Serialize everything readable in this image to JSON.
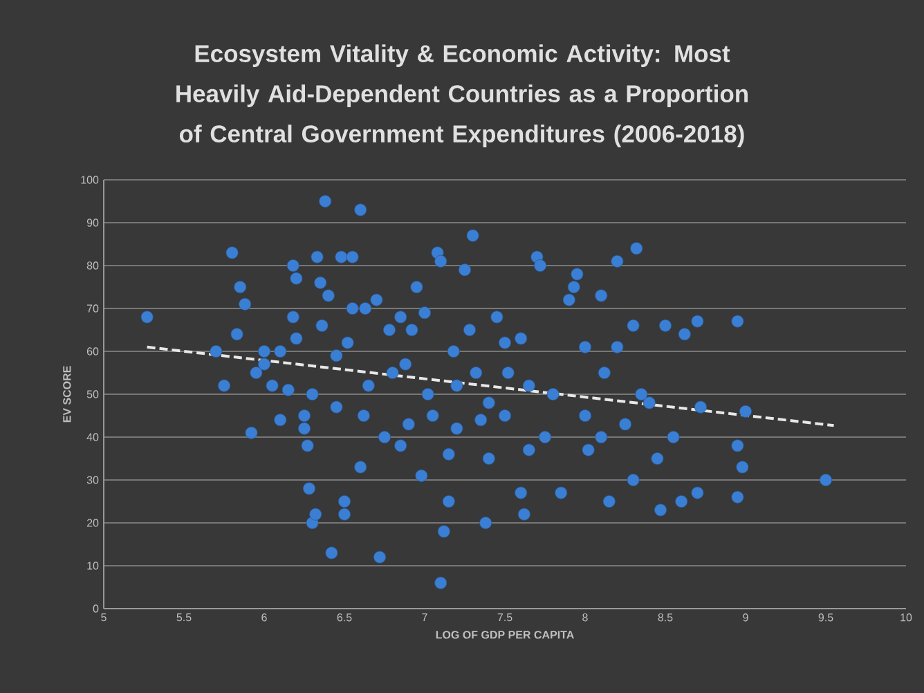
{
  "chart_data": {
    "type": "scatter",
    "title": "Ecosystem Vitality & Economic Activity: Most Heavily Aid-Dependent Countries as a Proportion of Central Government Expenditures (2006-2018)",
    "xlabel": "LOG OF GDP PER CAPITA",
    "ylabel": "EV SCORE",
    "xlim": [
      5,
      10
    ],
    "xticks": [
      5,
      5.5,
      6,
      6.5,
      7,
      7.5,
      8,
      8.5,
      9,
      9.5,
      10
    ],
    "ylim": [
      0,
      100
    ],
    "yticks": [
      0,
      10,
      20,
      30,
      40,
      50,
      60,
      70,
      80,
      90,
      100
    ],
    "grid": "y",
    "series": [
      {
        "color": "#3b7fd4",
        "marker": "circle",
        "x": [
          5.27,
          5.7,
          5.75,
          5.8,
          5.85,
          5.88,
          5.83,
          5.92,
          5.95,
          6.0,
          6.0,
          6.05,
          6.1,
          6.15,
          6.18,
          6.2,
          6.18,
          6.2,
          6.25,
          6.25,
          6.27,
          6.28,
          6.3,
          6.32,
          6.3,
          6.33,
          6.35,
          6.36,
          6.38,
          6.4,
          6.42,
          6.45,
          6.48,
          6.5,
          6.5,
          6.52,
          6.55,
          6.55,
          6.6,
          6.62,
          6.63,
          6.6,
          6.65,
          6.7,
          6.72,
          6.75,
          6.78,
          6.8,
          6.85,
          6.88,
          6.9,
          6.92,
          6.95,
          6.98,
          7.0,
          7.02,
          7.05,
          7.08,
          7.1,
          7.1,
          7.12,
          7.15,
          7.15,
          7.18,
          7.2,
          7.2,
          7.25,
          7.28,
          7.3,
          7.32,
          7.35,
          7.38,
          7.4,
          7.45,
          7.5,
          7.5,
          7.52,
          7.6,
          7.6,
          7.62,
          7.65,
          7.7,
          7.72,
          7.75,
          7.8,
          7.85,
          7.9,
          7.93,
          7.95,
          8.0,
          8.0,
          8.02,
          8.1,
          8.12,
          8.15,
          8.2,
          8.2,
          8.25,
          8.3,
          8.32,
          8.35,
          8.4,
          8.45,
          8.47,
          8.5,
          8.55,
          8.6,
          8.62,
          8.7,
          8.72,
          8.7,
          8.95,
          8.95,
          8.98,
          8.95,
          9.0,
          9.5,
          6.85,
          7.4,
          8.3,
          6.1,
          6.45,
          7.65,
          8.1
        ],
        "values": [
          68,
          60,
          52,
          83,
          75,
          71,
          64,
          41,
          55,
          57,
          60,
          52,
          60,
          51,
          80,
          77,
          68,
          63,
          45,
          42,
          38,
          28,
          20,
          22,
          50,
          82,
          76,
          66,
          95,
          73,
          13,
          59,
          82,
          25,
          22,
          62,
          82,
          70,
          93,
          45,
          70,
          33,
          52,
          72,
          12,
          40,
          65,
          55,
          68,
          57,
          43,
          65,
          75,
          31,
          69,
          50,
          45,
          83,
          81,
          6,
          18,
          25,
          36,
          60,
          52,
          42,
          79,
          65,
          87,
          55,
          44,
          20,
          48,
          68,
          62,
          45,
          55,
          63,
          27,
          22,
          52,
          82,
          80,
          40,
          50,
          27,
          72,
          75,
          78,
          61,
          45,
          37,
          73,
          55,
          25,
          81,
          61,
          43,
          66,
          84,
          50,
          48,
          35,
          23,
          66,
          40,
          25,
          64,
          67,
          47,
          27,
          67,
          38,
          33,
          26,
          46,
          30,
          38,
          35,
          30,
          44,
          47,
          37,
          40
        ]
      },
      {
        "type": "line",
        "color": "#e8e8e8",
        "line_style": "dashed",
        "marker": "none",
        "x": [
          5.27,
          9.55
        ],
        "values": [
          61,
          42.7
        ]
      }
    ]
  }
}
